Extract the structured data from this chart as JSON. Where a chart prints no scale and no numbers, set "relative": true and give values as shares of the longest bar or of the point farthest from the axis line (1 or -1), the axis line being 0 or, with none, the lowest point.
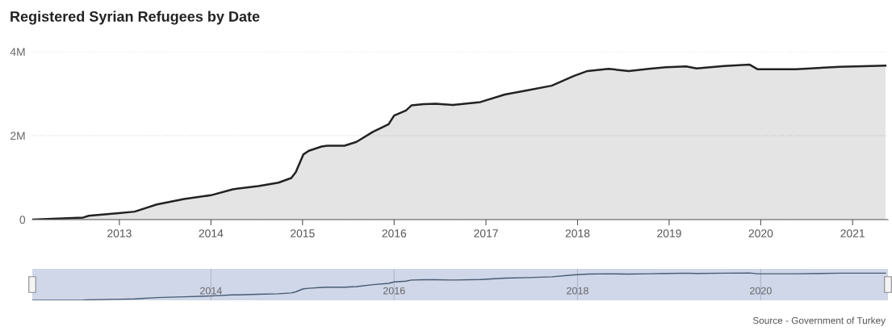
{
  "chart_data": [
    {
      "type": "area",
      "title": "Registered Syrian Refugees by Date",
      "annotations": [
        "Source - Government of Turkey"
      ],
      "x": [
        "2012-01-20",
        "2012-08-10",
        "2012-09-01",
        "2013-01-08",
        "2013-03-03",
        "2013-05-30",
        "2013-09-16",
        "2014-01-01",
        "2014-03-29",
        "2014-04-20",
        "2014-07-09",
        "2014-09-27",
        "2014-11-17",
        "2014-12-05",
        "2015-01-04",
        "2015-01-26",
        "2015-03-18",
        "2015-04-09",
        "2015-06-17",
        "2015-08-04",
        "2015-10-08",
        "2015-12-10",
        "2016-01-01",
        "2016-02-17",
        "2016-03-10",
        "2016-04-27",
        "2016-06-14",
        "2016-08-22",
        "2016-12-10",
        "2017-03-18",
        "2017-06-17",
        "2017-09-20",
        "2017-12-17",
        "2018-02-10",
        "2018-05-05",
        "2018-07-24",
        "2018-10-12",
        "2018-12-20",
        "2019-03-10",
        "2019-04-20",
        "2019-08-08",
        "2019-11-18",
        "2019-12-20",
        "2020-05-20",
        "2020-11-10",
        "2021-05-12"
      ],
      "series": [
        {
          "color": "#222222",
          "values": [
            0,
            50000,
            90000,
            160000,
            190000,
            360000,
            490000,
            580000,
            720000,
            740000,
            800000,
            880000,
            990000,
            1130000,
            1550000,
            1640000,
            1740000,
            1760000,
            1760000,
            1850000,
            2090000,
            2270000,
            2480000,
            2600000,
            2720000,
            2750000,
            2760000,
            2730000,
            2800000,
            2980000,
            3080000,
            3190000,
            3420000,
            3540000,
            3590000,
            3540000,
            3590000,
            3630000,
            3650000,
            3600000,
            3660000,
            3690000,
            3580000,
            3580000,
            3640000,
            3670000
          ]
        }
      ],
      "xlim": [
        "2012-01-20",
        "2021-05-22"
      ],
      "xticks": [
        "2013",
        "2014",
        "2015",
        "2016",
        "2017",
        "2018",
        "2019",
        "2020",
        "2021"
      ],
      "ylim": [
        0,
        4000000
      ],
      "yticks": [
        {
          "value": 0,
          "label": "0"
        },
        {
          "value": 2000000,
          "label": "2M"
        },
        {
          "value": 4000000,
          "label": "4M"
        }
      ],
      "grid": "y"
    },
    {
      "type": "line",
      "relative": true,
      "tick_labels": "x",
      "x": [
        "2012-01-20",
        "2012-08-10",
        "2012-09-01",
        "2013-01-08",
        "2013-03-03",
        "2013-05-30",
        "2013-09-16",
        "2014-01-01",
        "2014-03-29",
        "2014-04-20",
        "2014-07-09",
        "2014-09-27",
        "2014-11-17",
        "2014-12-05",
        "2015-01-04",
        "2015-01-26",
        "2015-03-18",
        "2015-04-09",
        "2015-06-17",
        "2015-08-04",
        "2015-10-08",
        "2015-12-10",
        "2016-01-01",
        "2016-02-17",
        "2016-03-10",
        "2016-04-27",
        "2016-06-14",
        "2016-08-22",
        "2016-12-10",
        "2017-03-18",
        "2017-06-17",
        "2017-09-20",
        "2017-12-17",
        "2018-02-10",
        "2018-05-05",
        "2018-07-24",
        "2018-10-12",
        "2018-12-20",
        "2019-03-10",
        "2019-04-20",
        "2019-08-08",
        "2019-11-18",
        "2019-12-20",
        "2020-05-20",
        "2020-11-10",
        "2021-05-12"
      ],
      "series": [
        {
          "color": "#4a5a70",
          "values": [
            0,
            0.01,
            0.02,
            0.04,
            0.05,
            0.1,
            0.13,
            0.16,
            0.2,
            0.2,
            0.22,
            0.24,
            0.27,
            0.31,
            0.42,
            0.44,
            0.47,
            0.48,
            0.48,
            0.5,
            0.57,
            0.62,
            0.67,
            0.7,
            0.74,
            0.75,
            0.75,
            0.74,
            0.76,
            0.81,
            0.83,
            0.86,
            0.93,
            0.96,
            0.97,
            0.96,
            0.97,
            0.98,
            0.99,
            0.98,
            0.99,
            1,
            0.97,
            0.97,
            0.99,
            0.99
          ]
        }
      ],
      "xlim": [
        "2012-01-20",
        "2021-05-22"
      ],
      "xticks": [
        "2014",
        "2016",
        "2018",
        "2020"
      ],
      "grid": "x"
    }
  ]
}
